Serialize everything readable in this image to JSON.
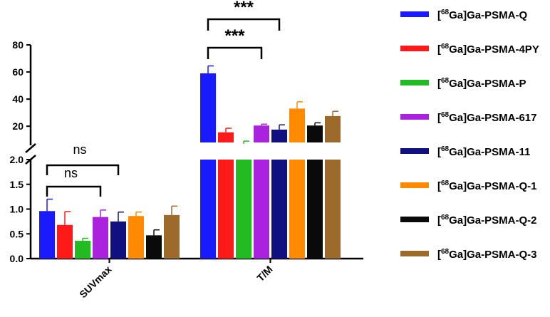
{
  "chart_data": {
    "type": "bar",
    "title": "",
    "xlabel": "",
    "ylabel": "",
    "categories": [
      "SUVmax",
      "T/M"
    ],
    "axis_break": true,
    "y_lower_range": [
      0.0,
      2.0
    ],
    "y_lower_ticks": [
      "0.0",
      "0.5",
      "1.0",
      "1.5",
      "2.0"
    ],
    "y_upper_range": [
      8,
      80
    ],
    "y_upper_ticks": [
      "20",
      "40",
      "60",
      "80"
    ],
    "legend_position": "right",
    "series": [
      {
        "name_prefix": "[",
        "name_sup": "68",
        "name_suffix": "Ga]Ga-PSMA-Q",
        "color": "#1a1aff",
        "values": [
          0.96,
          59.0
        ],
        "errors": [
          0.24,
          5.5
        ]
      },
      {
        "name_prefix": "[",
        "name_sup": "68",
        "name_suffix": "Ga]Ga-PSMA-4PY",
        "color": "#ff1a1a",
        "values": [
          0.68,
          15.5
        ],
        "errors": [
          0.27,
          3.0
        ]
      },
      {
        "name_prefix": "[",
        "name_sup": "68",
        "name_suffix": "Ga]Ga-PSMA-P",
        "color": "#22bb22",
        "values": [
          0.36,
          7.0
        ],
        "errors": [
          0.05,
          2.0
        ]
      },
      {
        "name_prefix": "[",
        "name_sup": "68",
        "name_suffix": "Ga]Ga-PSMA-617",
        "color": "#aa22dd",
        "values": [
          0.84,
          20.5
        ],
        "errors": [
          0.14,
          1.0
        ]
      },
      {
        "name_prefix": "[",
        "name_sup": "68",
        "name_suffix": "Ga]Ga-PSMA-11",
        "color": "#101080",
        "values": [
          0.75,
          17.5
        ],
        "errors": [
          0.19,
          3.5
        ]
      },
      {
        "name_prefix": "[",
        "name_sup": "68",
        "name_suffix": "Ga]Ga-PSMA-Q-1",
        "color": "#ff8a00",
        "values": [
          0.86,
          33.0
        ],
        "errors": [
          0.08,
          5.0
        ]
      },
      {
        "name_prefix": "[",
        "name_sup": "68",
        "name_suffix": "Ga]Ga-PSMA-Q-2",
        "color": "#0a0a0a",
        "values": [
          0.47,
          20.5
        ],
        "errors": [
          0.11,
          2.0
        ]
      },
      {
        "name_prefix": "[",
        "name_sup": "68",
        "name_suffix": "Ga]Ga-PSMA-Q-3",
        "color": "#9c6a2a",
        "values": [
          0.88,
          27.5
        ],
        "errors": [
          0.18,
          3.5
        ]
      }
    ],
    "annotations": [
      {
        "group": "SUVmax",
        "from": 0,
        "to": 3,
        "label": "ns",
        "level": "inner"
      },
      {
        "group": "SUVmax",
        "from": 0,
        "to": 4,
        "label": "ns",
        "level": "outer"
      },
      {
        "group": "T/M",
        "from": 0,
        "to": 3,
        "label": "***",
        "level": "inner"
      },
      {
        "group": "T/M",
        "from": 0,
        "to": 4,
        "label": "***",
        "level": "outer"
      }
    ]
  }
}
